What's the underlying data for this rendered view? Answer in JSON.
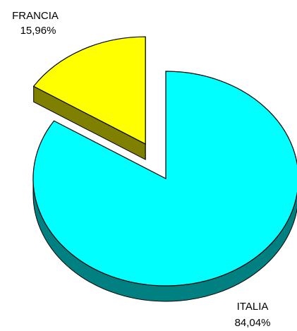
{
  "chart_data": {
    "type": "pie",
    "style": "3d-exploded",
    "slices": [
      {
        "label": "ITALIA",
        "value": 84.04,
        "display": "84,04%",
        "color": "#00FFFF",
        "side_color": "#008080"
      },
      {
        "label": "FRANCIA",
        "value": 15.96,
        "display": "15,96%",
        "color": "#FFFF00",
        "side_color": "#808000"
      }
    ],
    "legend": "none"
  }
}
